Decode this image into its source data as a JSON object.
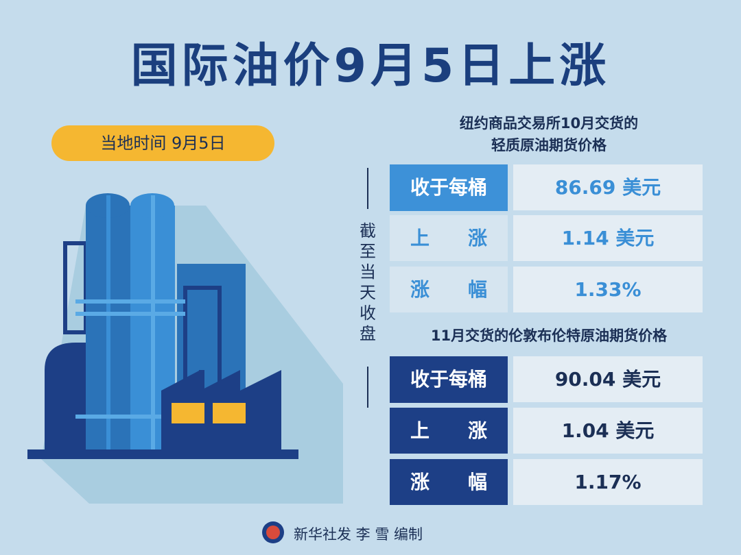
{
  "header": {
    "title": "国际油价9月5日上涨",
    "date": "当地时间 9月5日"
  },
  "side_label": "截至当天收盘",
  "sections": [
    {
      "title_lines": [
        "纽约商品交易所10月交货的",
        "轻质原油期货价格"
      ],
      "rows": [
        [
          "收于每桶",
          "86.69 美元"
        ],
        [
          "上　　涨",
          "1.14 美元"
        ],
        [
          "涨　　幅",
          "1.33%"
        ]
      ]
    },
    {
      "title_lines": [
        "11月交货的伦敦布伦特原油期货价格"
      ],
      "rows": [
        [
          "收于每桶",
          "90.04 美元"
        ],
        [
          "上　　涨",
          "1.04 美元"
        ],
        [
          "涨　　幅",
          "1.17%"
        ]
      ]
    }
  ],
  "footer": "新华社发 李 雪 编制"
}
